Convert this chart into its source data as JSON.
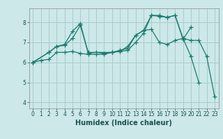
{
  "xlabel": "Humidex (Indice chaleur)",
  "background_color": "#cce8e8",
  "grid_color": "#aacccc",
  "line_color": "#1a7a6e",
  "xlim": [
    -0.5,
    23.5
  ],
  "ylim": [
    3.7,
    8.7
  ],
  "yticks": [
    4,
    5,
    6,
    7,
    8
  ],
  "xticks": [
    0,
    1,
    2,
    3,
    4,
    5,
    6,
    7,
    8,
    9,
    10,
    11,
    12,
    13,
    14,
    15,
    16,
    17,
    18,
    19,
    20,
    21,
    22,
    23
  ],
  "line1_x": [
    0,
    1,
    2,
    3,
    4,
    5,
    6,
    7,
    8,
    9,
    10,
    11,
    12,
    13,
    14,
    15,
    16,
    17,
    18,
    19,
    20,
    21,
    22,
    23
  ],
  "line1_y": [
    6.0,
    6.1,
    6.15,
    6.5,
    6.5,
    6.55,
    6.45,
    6.4,
    6.4,
    6.4,
    6.5,
    6.55,
    6.8,
    7.35,
    7.6,
    7.65,
    7.0,
    6.9,
    7.1,
    7.2,
    7.1,
    7.1,
    6.3,
    4.3
  ],
  "line2_x": [
    0,
    2,
    3,
    4,
    5,
    6,
    7,
    8,
    9,
    10,
    11,
    12,
    13,
    14,
    15,
    16,
    17,
    18,
    19,
    20,
    21
  ],
  "line2_y": [
    6.0,
    6.5,
    6.8,
    6.9,
    7.55,
    7.95,
    6.45,
    6.5,
    6.45,
    6.5,
    6.55,
    6.6,
    7.0,
    7.45,
    8.35,
    8.35,
    8.25,
    8.35,
    7.2,
    6.3,
    5.0
  ],
  "line3_x": [
    0,
    2,
    3,
    4,
    5,
    6,
    7,
    10,
    11,
    12,
    13,
    14,
    15,
    16,
    17,
    18,
    19,
    20
  ],
  "line3_y": [
    6.0,
    6.5,
    6.8,
    6.85,
    7.2,
    7.85,
    6.5,
    6.5,
    6.6,
    6.7,
    7.35,
    7.6,
    8.35,
    8.3,
    8.25,
    8.35,
    7.15,
    7.75
  ],
  "tick_color": "#1a5050",
  "xlabel_fontsize": 7,
  "tick_fontsize": 5.5,
  "linewidth": 0.9,
  "markersize": 4
}
